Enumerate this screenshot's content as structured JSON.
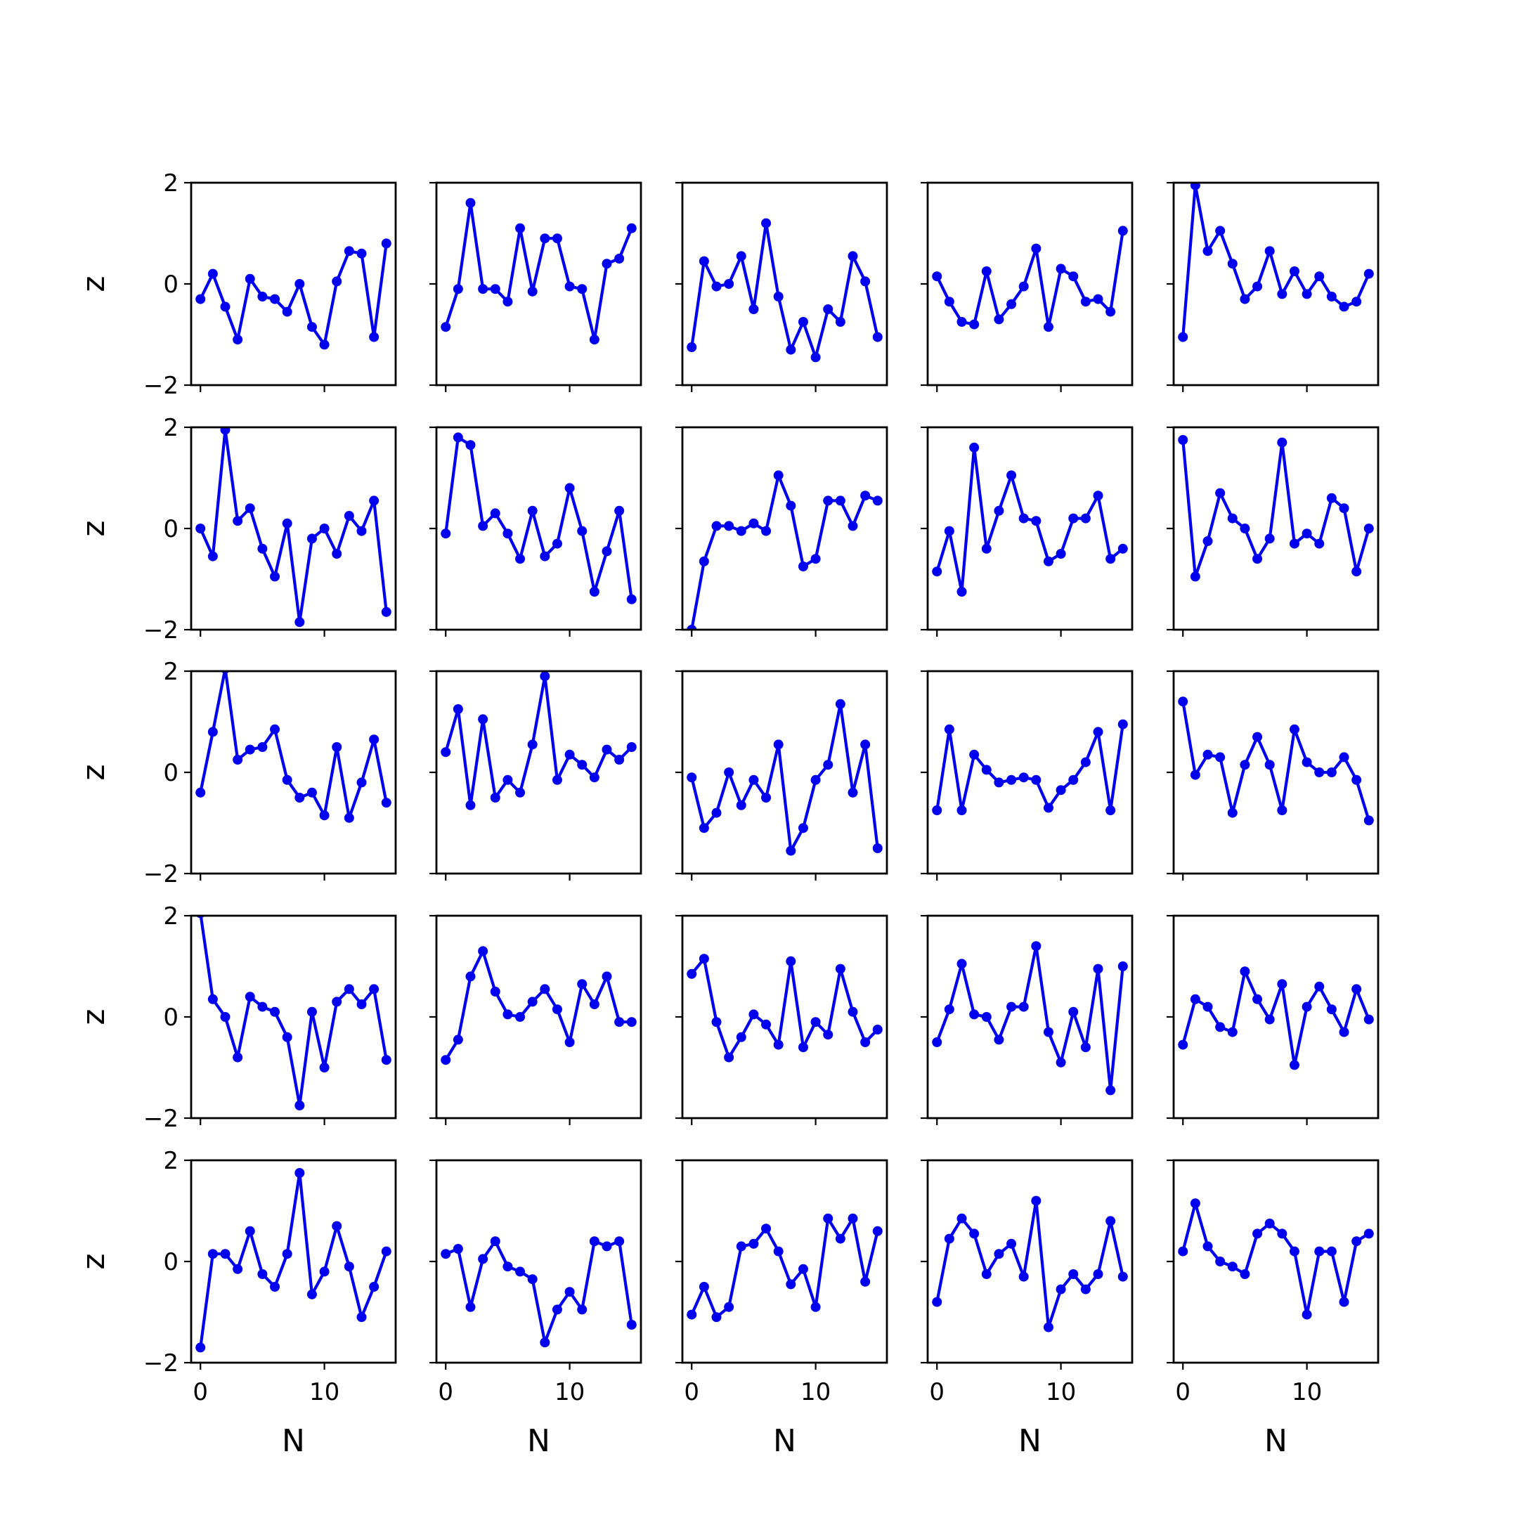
{
  "chart_data": {
    "type": "line",
    "layout": {
      "rows": 5,
      "cols": 5,
      "sharex": true,
      "sharey": true
    },
    "xlabel": "N",
    "ylabel": "z",
    "xlim": [
      -0.75,
      15.75
    ],
    "ylim": [
      -2,
      2
    ],
    "xticks": [
      0,
      10
    ],
    "yticks": [
      -2,
      0,
      2
    ],
    "xtick_labels": [
      "0",
      "10"
    ],
    "ytick_labels": [
      "−2",
      "0",
      "2"
    ],
    "grid": false,
    "legend": "none",
    "x": [
      0,
      1,
      2,
      3,
      4,
      5,
      6,
      7,
      8,
      9,
      10,
      11,
      12,
      13,
      14,
      15
    ],
    "color": "#0000ee",
    "marker": "circle",
    "panels": [
      {
        "row": 0,
        "col": 0,
        "values": [
          -0.3,
          0.2,
          -0.45,
          -1.1,
          0.1,
          -0.25,
          -0.3,
          -0.55,
          0.0,
          -0.85,
          -1.2,
          0.05,
          0.65,
          0.6,
          -1.05,
          0.8
        ]
      },
      {
        "row": 0,
        "col": 1,
        "values": [
          -0.85,
          -0.1,
          1.6,
          -0.1,
          -0.1,
          -0.35,
          1.1,
          -0.15,
          0.9,
          0.9,
          -0.05,
          -0.1,
          -1.1,
          0.4,
          0.5,
          1.1
        ]
      },
      {
        "row": 0,
        "col": 2,
        "values": [
          -1.25,
          0.45,
          -0.05,
          0.0,
          0.55,
          -0.5,
          1.2,
          -0.25,
          -1.3,
          -0.75,
          -1.45,
          -0.5,
          -0.75,
          0.55,
          0.05,
          -1.05
        ]
      },
      {
        "row": 0,
        "col": 3,
        "values": [
          0.15,
          -0.35,
          -0.75,
          -0.8,
          0.25,
          -0.7,
          -0.4,
          -0.05,
          0.7,
          -0.85,
          0.3,
          0.15,
          -0.35,
          -0.3,
          -0.55,
          1.05
        ]
      },
      {
        "row": 0,
        "col": 4,
        "values": [
          -1.05,
          1.95,
          0.65,
          1.05,
          0.4,
          -0.3,
          -0.05,
          0.65,
          -0.2,
          0.25,
          -0.2,
          0.15,
          -0.25,
          -0.45,
          -0.35,
          0.2
        ]
      },
      {
        "row": 1,
        "col": 0,
        "values": [
          0.0,
          -0.55,
          1.95,
          0.15,
          0.4,
          -0.4,
          -0.95,
          0.1,
          -1.85,
          -0.2,
          0.0,
          -0.5,
          0.25,
          -0.05,
          0.55,
          -1.65
        ]
      },
      {
        "row": 1,
        "col": 1,
        "values": [
          -0.1,
          1.8,
          1.65,
          0.05,
          0.3,
          -0.1,
          -0.6,
          0.35,
          -0.55,
          -0.3,
          0.8,
          -0.05,
          -1.25,
          -0.45,
          0.35,
          -1.4
        ]
      },
      {
        "row": 1,
        "col": 2,
        "values": [
          -2.0,
          -0.65,
          0.05,
          0.05,
          -0.05,
          0.1,
          -0.05,
          1.05,
          0.45,
          -0.75,
          -0.6,
          0.55,
          0.55,
          0.05,
          0.65,
          0.55
        ]
      },
      {
        "row": 1,
        "col": 3,
        "values": [
          -0.85,
          -0.05,
          -1.25,
          1.6,
          -0.4,
          0.35,
          1.05,
          0.2,
          0.15,
          -0.65,
          -0.5,
          0.2,
          0.2,
          0.65,
          -0.6,
          -0.4
        ]
      },
      {
        "row": 1,
        "col": 4,
        "values": [
          1.75,
          -0.95,
          -0.25,
          0.7,
          0.2,
          0.0,
          -0.6,
          -0.2,
          1.7,
          -0.3,
          -0.1,
          -0.3,
          0.6,
          0.4,
          -0.85,
          0.0
        ]
      },
      {
        "row": 2,
        "col": 0,
        "values": [
          -0.4,
          0.8,
          2.05,
          0.25,
          0.45,
          0.5,
          0.85,
          -0.15,
          -0.5,
          -0.4,
          -0.85,
          0.5,
          -0.9,
          -0.2,
          0.65,
          -0.6
        ]
      },
      {
        "row": 2,
        "col": 1,
        "values": [
          0.4,
          1.25,
          -0.65,
          1.05,
          -0.5,
          -0.15,
          -0.4,
          0.55,
          1.9,
          -0.15,
          0.35,
          0.15,
          -0.1,
          0.45,
          0.25,
          0.5
        ]
      },
      {
        "row": 2,
        "col": 2,
        "values": [
          -0.1,
          -1.1,
          -0.8,
          0.0,
          -0.65,
          -0.15,
          -0.5,
          0.55,
          -1.55,
          -1.1,
          -0.15,
          0.15,
          1.35,
          -0.4,
          0.55,
          -1.5
        ]
      },
      {
        "row": 2,
        "col": 3,
        "values": [
          -0.75,
          0.85,
          -0.75,
          0.35,
          0.05,
          -0.2,
          -0.15,
          -0.1,
          -0.15,
          -0.7,
          -0.35,
          -0.15,
          0.2,
          0.8,
          -0.75,
          0.95
        ]
      },
      {
        "row": 2,
        "col": 4,
        "values": [
          1.4,
          -0.05,
          0.35,
          0.3,
          -0.8,
          0.15,
          0.7,
          0.15,
          -0.75,
          0.85,
          0.2,
          0.0,
          0.0,
          0.3,
          -0.15,
          -0.95
        ]
      },
      {
        "row": 3,
        "col": 0,
        "values": [
          2.05,
          0.35,
          0.0,
          -0.8,
          0.4,
          0.2,
          0.1,
          -0.4,
          -1.75,
          0.1,
          -1.0,
          0.3,
          0.55,
          0.25,
          0.55,
          -0.85
        ]
      },
      {
        "row": 3,
        "col": 1,
        "values": [
          -0.85,
          -0.45,
          0.8,
          1.3,
          0.5,
          0.05,
          0.0,
          0.3,
          0.55,
          0.15,
          -0.5,
          0.65,
          0.25,
          0.8,
          -0.1,
          -0.1
        ]
      },
      {
        "row": 3,
        "col": 2,
        "values": [
          0.85,
          1.15,
          -0.1,
          -0.8,
          -0.4,
          0.05,
          -0.15,
          -0.55,
          1.1,
          -0.6,
          -0.1,
          -0.35,
          0.95,
          0.1,
          -0.5,
          -0.25
        ]
      },
      {
        "row": 3,
        "col": 3,
        "values": [
          -0.5,
          0.15,
          1.05,
          0.05,
          0.0,
          -0.45,
          0.2,
          0.2,
          1.4,
          -0.3,
          -0.9,
          0.1,
          -0.6,
          0.95,
          -1.45,
          1.0
        ]
      },
      {
        "row": 3,
        "col": 4,
        "values": [
          -0.55,
          0.35,
          0.2,
          -0.2,
          -0.3,
          0.9,
          0.35,
          -0.05,
          0.65,
          -0.95,
          0.2,
          0.6,
          0.15,
          -0.3,
          0.55,
          -0.05
        ]
      },
      {
        "row": 4,
        "col": 0,
        "values": [
          -1.7,
          0.15,
          0.15,
          -0.15,
          0.6,
          -0.25,
          -0.5,
          0.15,
          1.75,
          -0.65,
          -0.2,
          0.7,
          -0.1,
          -1.1,
          -0.5,
          0.2
        ]
      },
      {
        "row": 4,
        "col": 1,
        "values": [
          0.15,
          0.25,
          -0.9,
          0.05,
          0.4,
          -0.1,
          -0.2,
          -0.35,
          -1.6,
          -0.95,
          -0.6,
          -0.95,
          0.4,
          0.3,
          0.4,
          -1.25
        ]
      },
      {
        "row": 4,
        "col": 2,
        "values": [
          -1.05,
          -0.5,
          -1.1,
          -0.9,
          0.3,
          0.35,
          0.65,
          0.2,
          -0.45,
          -0.15,
          -0.9,
          0.85,
          0.45,
          0.85,
          -0.4,
          0.6
        ]
      },
      {
        "row": 4,
        "col": 3,
        "values": [
          -0.8,
          0.45,
          0.85,
          0.55,
          -0.25,
          0.15,
          0.35,
          -0.3,
          1.2,
          -1.3,
          -0.55,
          -0.25,
          -0.55,
          -0.25,
          0.8,
          -0.3
        ]
      },
      {
        "row": 4,
        "col": 4,
        "values": [
          0.2,
          1.15,
          0.3,
          0.0,
          -0.1,
          -0.25,
          0.55,
          0.75,
          0.55,
          0.2,
          -1.05,
          0.2,
          0.2,
          -0.8,
          0.4,
          0.55
        ]
      }
    ]
  }
}
